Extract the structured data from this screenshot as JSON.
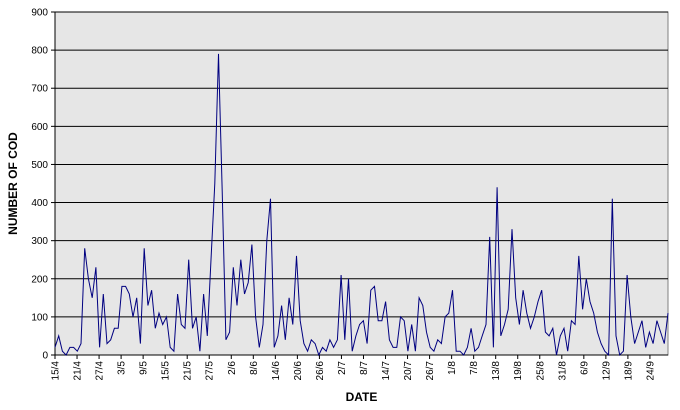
{
  "chart_data": {
    "type": "line",
    "xlabel": "DATE",
    "ylabel": "NUMBER OF COD",
    "ylim": [
      0,
      900
    ],
    "yticks": [
      0,
      100,
      200,
      300,
      400,
      500,
      600,
      700,
      800,
      900
    ],
    "xlim": [
      "15/4",
      "30/9"
    ],
    "xtick_labels": [
      "15/4",
      "21/4",
      "27/4",
      "3/5",
      "9/5",
      "15/5",
      "21/5",
      "27/5",
      "2/6",
      "8/6",
      "14/6",
      "20/6",
      "26/6",
      "2/7",
      "8/7",
      "14/7",
      "20/7",
      "26/7",
      "1/8",
      "7/8",
      "13/8",
      "19/8",
      "25/8",
      "31/8",
      "6/9",
      "12/9",
      "18/9",
      "24/9"
    ],
    "grid": "horizontal",
    "legend": "none",
    "line_color": "#000080",
    "plot_background": "#e6e6e6",
    "series": [
      {
        "values": [
          20,
          50,
          10,
          0,
          20,
          20,
          10,
          30,
          280,
          200,
          150,
          230,
          20,
          160,
          30,
          40,
          70,
          70,
          180,
          180,
          160,
          100,
          150,
          30,
          280,
          130,
          170,
          70,
          110,
          80,
          100,
          20,
          10,
          160,
          80,
          70,
          250,
          70,
          100,
          10,
          160,
          50,
          250,
          450,
          790,
          430,
          40,
          60,
          230,
          130,
          250,
          160,
          190,
          290,
          100,
          20,
          80,
          300,
          410,
          20,
          50,
          130,
          40,
          150,
          80,
          260,
          90,
          30,
          10,
          40,
          30,
          0,
          20,
          10,
          40,
          20,
          40,
          210,
          40,
          200,
          10,
          50,
          80,
          90,
          30,
          170,
          180,
          90,
          90,
          140,
          40,
          20,
          20,
          100,
          90,
          10,
          80,
          10,
          150,
          130,
          60,
          20,
          10,
          40,
          30,
          100,
          110,
          170,
          10,
          10,
          0,
          20,
          70,
          10,
          20,
          50,
          80,
          310,
          20,
          440,
          50,
          80,
          120,
          330,
          150,
          80,
          170,
          110,
          70,
          100,
          140,
          170,
          60,
          50,
          70,
          0,
          50,
          70,
          10,
          90,
          80,
          260,
          120,
          200,
          140,
          110,
          60,
          30,
          10,
          0,
          410,
          50,
          0,
          10,
          210,
          100,
          30,
          60,
          90,
          20,
          60,
          30,
          90,
          60,
          30,
          110
        ]
      }
    ]
  }
}
